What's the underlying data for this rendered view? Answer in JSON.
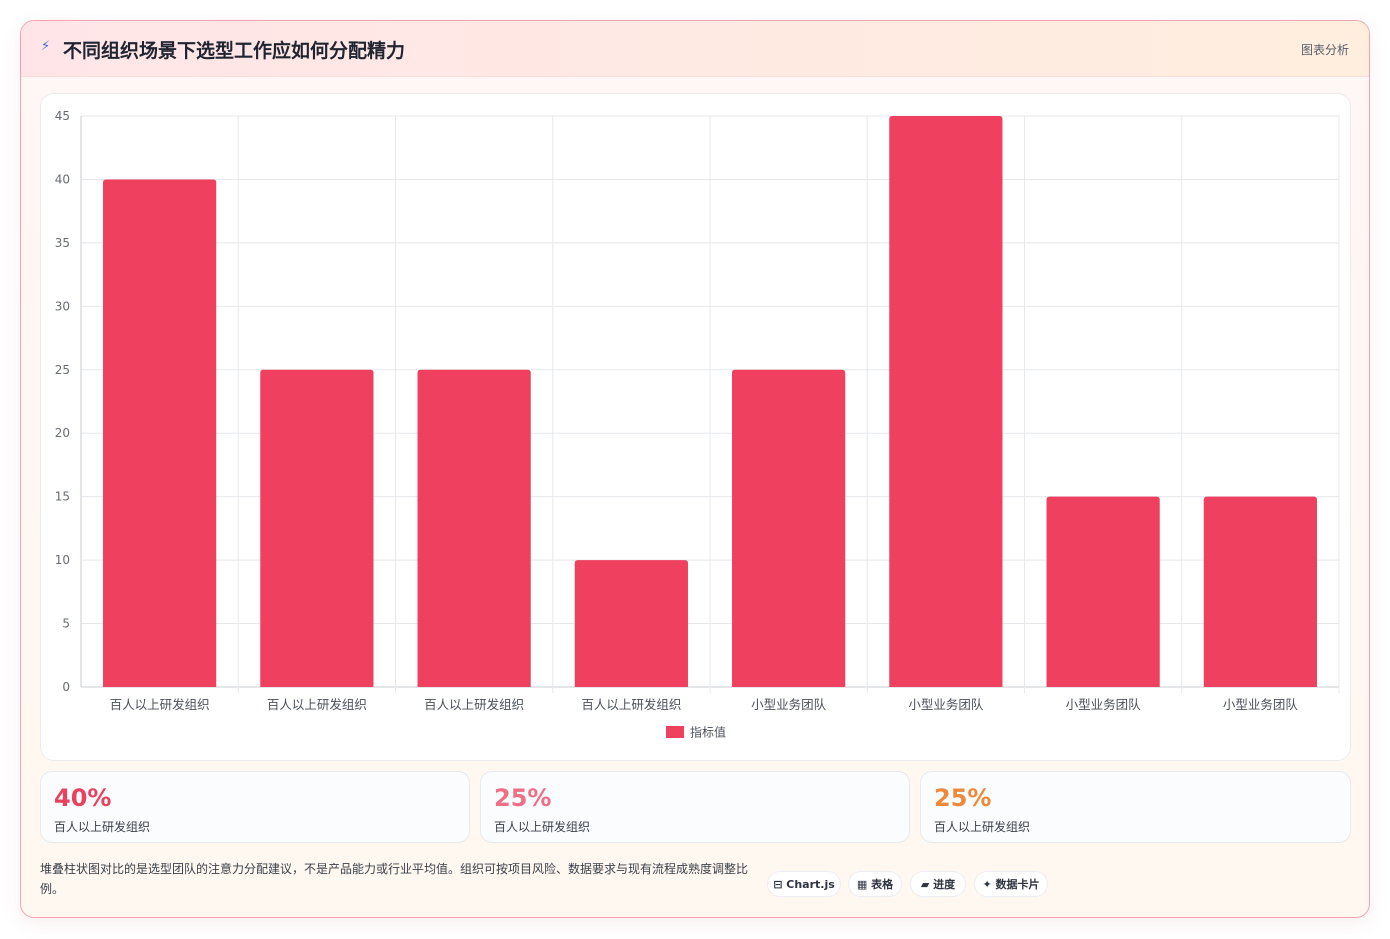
{
  "header": {
    "icon": "bolt-icon",
    "title": "不同组织场景下选型工作应如何分配精力",
    "right_label": "图表分析"
  },
  "chart_data": {
    "type": "bar",
    "categories": [
      "百人以上研发组织",
      "百人以上研发组织",
      "百人以上研发组织",
      "百人以上研发组织",
      "小型业务团队",
      "小型业务团队",
      "小型业务团队",
      "小型业务团队"
    ],
    "series": [
      {
        "name": "指标值",
        "values": [
          40,
          25,
          25,
          10,
          25,
          45,
          15,
          15
        ],
        "color": "#f04060"
      }
    ],
    "ylim": [
      0,
      45
    ],
    "yticks": [
      0,
      5,
      10,
      15,
      20,
      25,
      30,
      35,
      40,
      45
    ],
    "grid": true,
    "legend_position": "bottom"
  },
  "stats": [
    {
      "value": "40%",
      "label": "百人以上研发组织",
      "color": "#e8425e"
    },
    {
      "value": "25%",
      "label": "百人以上研发组织",
      "color": "#ef6f86"
    },
    {
      "value": "25%",
      "label": "百人以上研发组织",
      "color": "#f0883a"
    }
  ],
  "footnote": "堆叠柱状图对比的是选型团队的注意力分配建议，不是产品能力或行业平均值。组织可按项目风险、数据要求与现有流程成熟度调整比例。",
  "pills": [
    {
      "icon": "chart-icon",
      "glyph": "⊟",
      "label": "Chart.js"
    },
    {
      "icon": "table-icon",
      "glyph": "▦",
      "label": "表格"
    },
    {
      "icon": "progress-icon",
      "glyph": "▰",
      "label": "进度"
    },
    {
      "icon": "sparkle-icon",
      "glyph": "✦",
      "label": "数据卡片"
    }
  ]
}
